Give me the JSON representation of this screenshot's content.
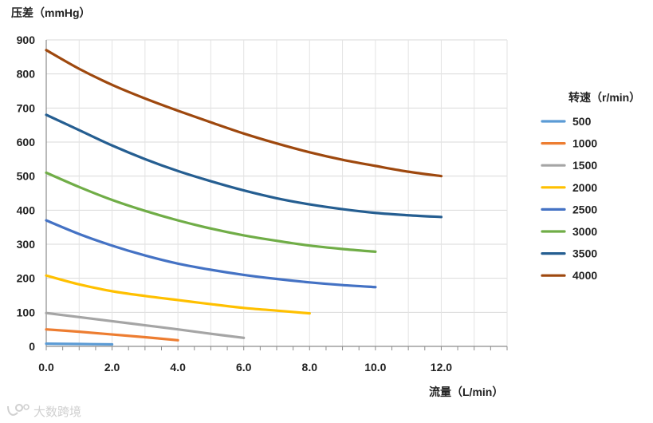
{
  "chart_data": {
    "type": "line",
    "title": "",
    "ylabel": "压差（mmHg）",
    "xlabel": "流量（L/min）",
    "xlim": [
      0,
      14
    ],
    "ylim": [
      0,
      900
    ],
    "xticks": [
      "0.0",
      "2.0",
      "4.0",
      "6.0",
      "8.0",
      "10.0",
      "12.0"
    ],
    "xtick_values": [
      0,
      2,
      4,
      6,
      8,
      10,
      12
    ],
    "yticks": [
      "0",
      "100",
      "200",
      "300",
      "400",
      "500",
      "600",
      "700",
      "800",
      "900"
    ],
    "ytick_values": [
      0,
      100,
      200,
      300,
      400,
      500,
      600,
      700,
      800,
      900
    ],
    "grid": true,
    "legend_title": "转速（r/min）",
    "legend_position": "right",
    "series": [
      {
        "name": "500",
        "color": "#5B9BD5",
        "x": [
          0,
          1,
          2
        ],
        "y": [
          8,
          7,
          6
        ]
      },
      {
        "name": "1000",
        "color": "#ED7D31",
        "x": [
          0,
          1,
          2,
          3,
          4
        ],
        "y": [
          50,
          43,
          35,
          27,
          18
        ]
      },
      {
        "name": "1500",
        "color": "#A5A5A5",
        "x": [
          0,
          1,
          2,
          3,
          4,
          5,
          6
        ],
        "y": [
          98,
          86,
          74,
          62,
          50,
          37,
          25
        ]
      },
      {
        "name": "2000",
        "color": "#FFC000",
        "x": [
          0,
          1,
          2,
          3,
          4,
          5,
          6,
          7,
          8
        ],
        "y": [
          208,
          182,
          162,
          148,
          136,
          124,
          113,
          105,
          97
        ]
      },
      {
        "name": "2500",
        "color": "#4472C4",
        "x": [
          0,
          1,
          2,
          3,
          4,
          5,
          6,
          7,
          8,
          9,
          10
        ],
        "y": [
          370,
          330,
          296,
          267,
          243,
          225,
          210,
          198,
          188,
          180,
          174
        ]
      },
      {
        "name": "3000",
        "color": "#70AD47",
        "x": [
          0,
          1,
          2,
          3,
          4,
          5,
          6,
          7,
          8,
          9,
          10
        ],
        "y": [
          510,
          468,
          430,
          398,
          370,
          346,
          326,
          310,
          296,
          286,
          278
        ]
      },
      {
        "name": "3500",
        "color": "#255E91",
        "x": [
          0,
          1,
          2,
          3,
          4,
          5,
          6,
          7,
          8,
          9,
          10,
          11,
          12
        ],
        "y": [
          680,
          635,
          590,
          550,
          515,
          485,
          458,
          435,
          417,
          403,
          392,
          385,
          380
        ]
      },
      {
        "name": "4000",
        "color": "#9E480E",
        "x": [
          0,
          1,
          2,
          3,
          4,
          5,
          6,
          7,
          8,
          9,
          10,
          11,
          12
        ],
        "y": [
          870,
          815,
          768,
          728,
          692,
          658,
          625,
          596,
          570,
          548,
          530,
          513,
          500
        ]
      }
    ]
  },
  "watermark": {
    "text": "大数跨境",
    "icon": "brand-logo-icon"
  }
}
